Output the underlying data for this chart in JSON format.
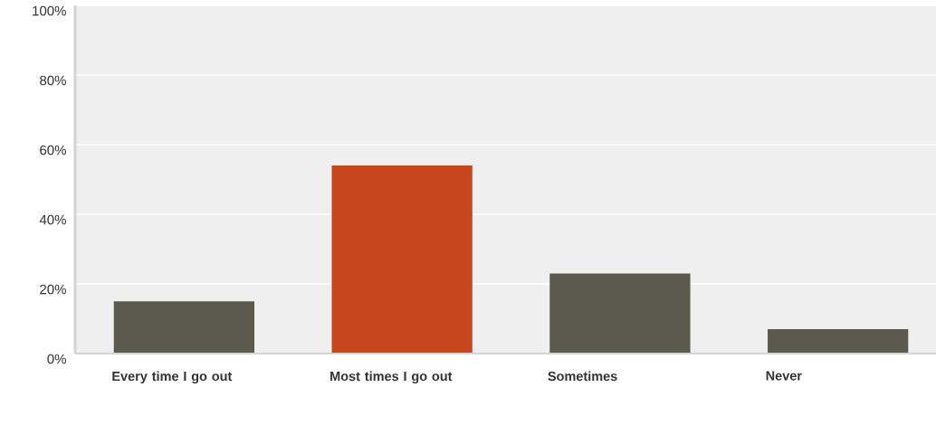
{
  "chart_data": {
    "type": "bar",
    "categories": [
      "Every time I go out",
      "Most times I go out",
      "Sometimes",
      "Never"
    ],
    "values": [
      15,
      54,
      23,
      7
    ],
    "colors": [
      "#5c5a4c",
      "#c8461c",
      "#5c5a4c",
      "#5c5a4c"
    ],
    "ylim": [
      0,
      100
    ],
    "yticks": [
      {
        "value": 0,
        "label": "0%"
      },
      {
        "value": 20,
        "label": "20%"
      },
      {
        "value": 40,
        "label": "40%"
      },
      {
        "value": 60,
        "label": "60%"
      },
      {
        "value": 80,
        "label": "80%"
      },
      {
        "value": 100,
        "label": "100%"
      }
    ],
    "grid": "y"
  }
}
